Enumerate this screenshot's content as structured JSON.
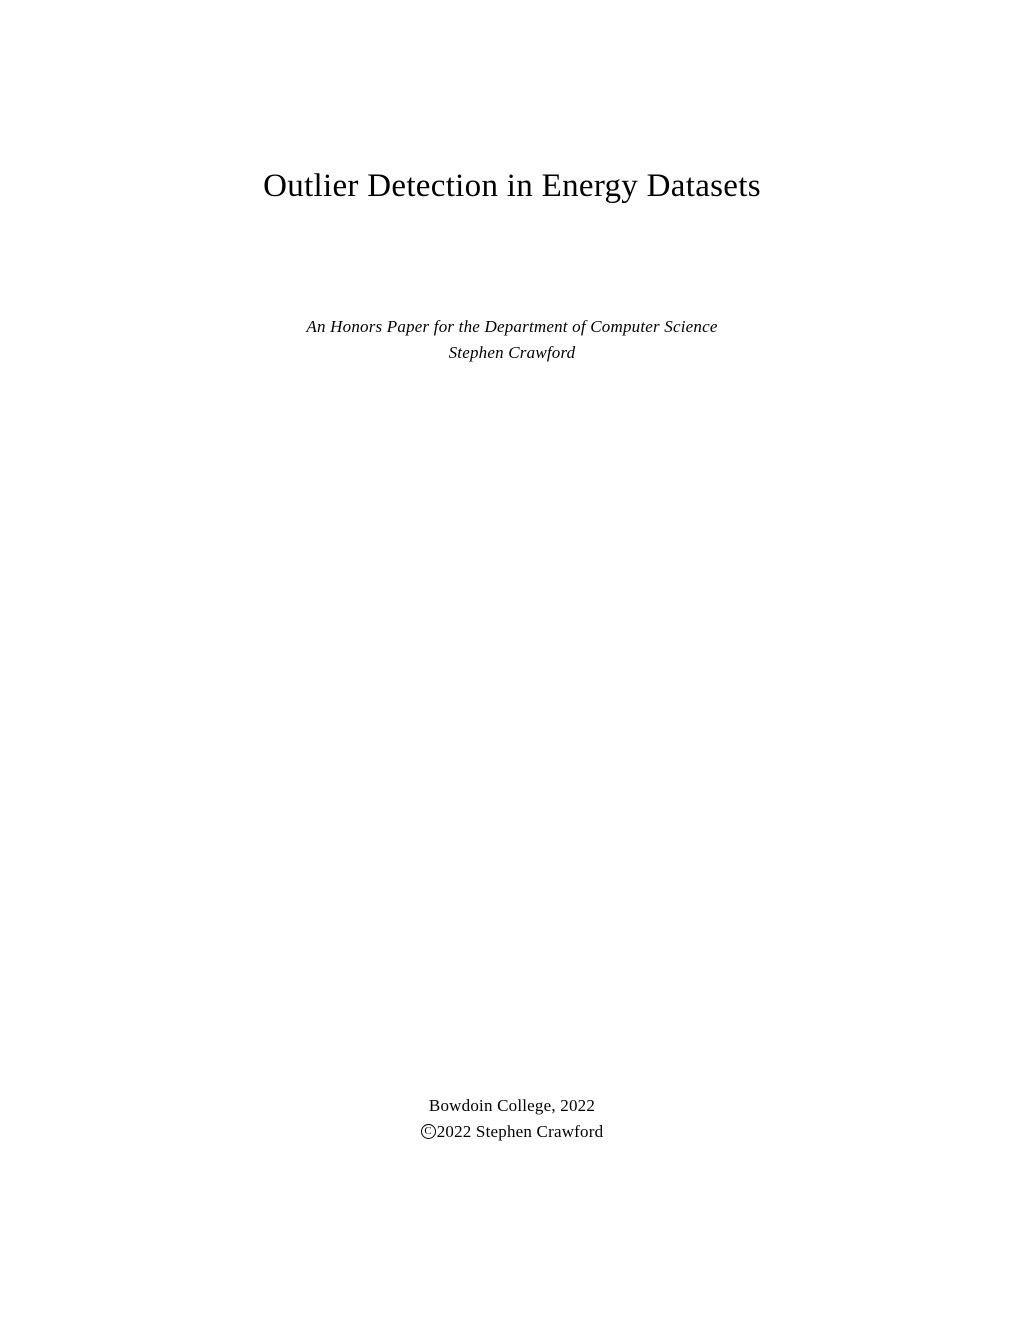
{
  "title": "Outlier Detection in Energy Datasets",
  "subtitle": {
    "line1": "An Honors Paper for the Department of Computer Science",
    "line2": "Stephen Crawford"
  },
  "footer": {
    "institution": "Bowdoin College, 2022",
    "copyright_symbol": "C",
    "copyright_text": "2022 Stephen Crawford"
  },
  "style": {
    "background_color": "#ffffff",
    "text_color": "#000000",
    "title_fontsize": 33,
    "subtitle_fontsize": 17,
    "footer_fontsize": 17
  }
}
